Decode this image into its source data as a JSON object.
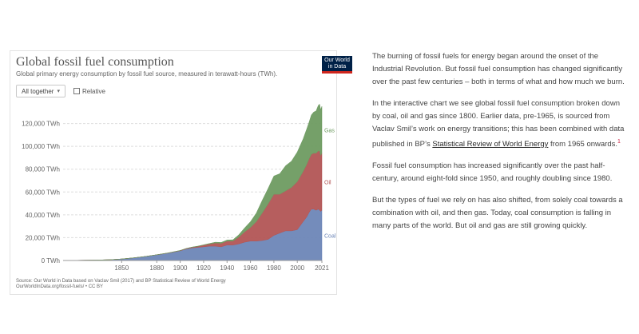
{
  "chart_panel": {
    "title": "Global fossil fuel consumption",
    "subtitle": "Global primary energy consumption by fossil fuel source, measured in terawatt-hours (TWh).",
    "logo_line1": "Our World",
    "logo_line2": "in Data",
    "select_label": "All together",
    "select_caret": "▾",
    "checkbox_label": "Relative",
    "source_line1": "Source: Our World in Data based on Vaclav Smil (2017) and BP Statistical Review of World Energy",
    "source_line2": "OurWorldInData.org/fossil-fuels/ • CC BY"
  },
  "chart_data": {
    "type": "area",
    "stacked": true,
    "x": [
      1800,
      1810,
      1820,
      1830,
      1840,
      1850,
      1860,
      1870,
      1880,
      1890,
      1900,
      1905,
      1910,
      1915,
      1920,
      1925,
      1930,
      1935,
      1940,
      1945,
      1950,
      1955,
      1960,
      1965,
      1970,
      1975,
      1980,
      1985,
      1990,
      1995,
      2000,
      2005,
      2008,
      2010,
      2012,
      2014,
      2016,
      2018,
      2019,
      2020,
      2021
    ],
    "series": [
      {
        "name": "Coal",
        "color": "#6d86b7",
        "values": [
          100,
          150,
          250,
          450,
          700,
          1300,
          2300,
          3500,
          5000,
          6500,
          8500,
          10000,
          11000,
          11500,
          12000,
          12500,
          12500,
          12000,
          13500,
          13500,
          14500,
          16000,
          17000,
          17000,
          17500,
          18500,
          22000,
          24000,
          26000,
          26000,
          27000,
          34000,
          38000,
          42000,
          45000,
          45000,
          44000,
          45000,
          44000,
          43000,
          44000
        ]
      },
      {
        "name": "Oil",
        "color": "#b25555",
        "values": [
          0,
          0,
          0,
          0,
          0,
          0,
          0,
          0,
          40,
          150,
          250,
          400,
          600,
          900,
          1500,
          2000,
          2800,
          3000,
          3500,
          3500,
          6000,
          9000,
          12000,
          17000,
          24000,
          31000,
          36000,
          34000,
          35000,
          38000,
          42000,
          44000,
          46000,
          47000,
          48000,
          49000,
          50000,
          51000,
          52000,
          49000,
          50000
        ]
      },
      {
        "name": "Gas",
        "color": "#6e9b61",
        "values": [
          0,
          0,
          0,
          0,
          0,
          0,
          0,
          0,
          5,
          50,
          70,
          100,
          150,
          200,
          250,
          400,
          700,
          800,
          900,
          1100,
          2000,
          3500,
          5000,
          7500,
          11000,
          13500,
          16000,
          18000,
          22000,
          23000,
          26000,
          28500,
          31000,
          32000,
          34500,
          36000,
          37000,
          40000,
          41000,
          40000,
          41000
        ]
      }
    ],
    "xticks": [
      1850,
      1880,
      1900,
      1920,
      1940,
      1960,
      1980,
      2000,
      2021
    ],
    "yticks": [
      0,
      20000,
      40000,
      60000,
      80000,
      100000,
      120000
    ],
    "ytick_labels": [
      "0 TWh",
      "20,000 TWh",
      "40,000 TWh",
      "60,000 TWh",
      "80,000 TWh",
      "100,000 TWh",
      "120,000 TWh"
    ],
    "xlim": [
      1800,
      2021
    ],
    "ylim": [
      0,
      140000
    ],
    "xlabel": "",
    "ylabel": "",
    "grid": true,
    "legend": "inline-right"
  },
  "article": {
    "p1": "The burning of fossil fuels for energy began around the onset of the Industrial Revolution. But fossil fuel consumption has changed significantly over the past few centuries – both in terms of what and how much we burn.",
    "p2_before": "In the interactive chart we see global fossil fuel consumption broken down by coal, oil and gas since 1800. Earlier data, pre-1965, is sourced from Vaclav Smil’s work on energy transitions; this has been combined with data published in BP’s ",
    "p2_link": "Statistical Review of World Energy",
    "p2_after": " from 1965 onwards.",
    "p2_ref": "1",
    "p3": "Fossil fuel consumption has increased significantly over the past half-century, around eight-fold since 1950, and roughly doubling since 1980.",
    "p4": "But the types of fuel we rely on has also shifted, from solely coal towards a combination with oil, and then gas. Today, coal consumption is falling in many parts of the world. But oil and gas are still growing quickly."
  }
}
